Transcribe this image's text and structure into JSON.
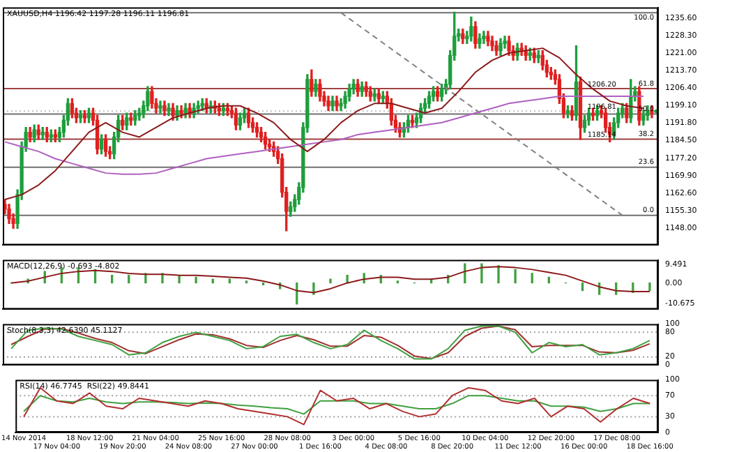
{
  "chart_data": [
    {
      "type": "candlestick",
      "title": "XAUUSD,H4 1196.42 1197.28 1196.11 1196.81",
      "tick_labels": "y",
      "colors": [
        "#e02020",
        "#e02020",
        "#e02020",
        "#1e9e3c",
        "#1e9e3c",
        "#1e9e3c",
        "#e02020",
        "#1e9e3c",
        "#e02020",
        "#1e9e3c",
        "#e02020",
        "#1e9e3c",
        "#e02020",
        "#1e9e3c",
        "#1e9e3c",
        "#1e9e3c",
        "#e02020",
        "#e02020",
        "#1e9e3c",
        "#e02020",
        "#1e9e3c",
        "#e02020",
        "#e02020",
        "#1e9e3c",
        "#e02020",
        "#e02020",
        "#1e9e3c",
        "#1e9e3c",
        "#e02020",
        "#1e9e3c",
        "#e02020",
        "#1e9e3c",
        "#1e9e3c",
        "#1e9e3c",
        "#1e9e3c",
        "#e02020",
        "#e02020",
        "#1e9e3c",
        "#e02020",
        "#1e9e3c",
        "#e02020",
        "#1e9e3c",
        "#e02020",
        "#1e9e3c",
        "#e02020",
        "#1e9e3c",
        "#1e9e3c",
        "#1e9e3c",
        "#e02020",
        "#1e9e3c",
        "#e02020",
        "#e02020",
        "#1e9e3c",
        "#e02020",
        "#e02020",
        "#e02020",
        "#1e9e3c",
        "#1e9e3c",
        "#e02020",
        "#e02020",
        "#e02020",
        "#e02020",
        "#e02020",
        "#e02020",
        "#e02020",
        "#e02020",
        "#e02020",
        "#e02020",
        "#1e9e3c",
        "#1e9e3c",
        "#1e9e3c",
        "#1e9e3c",
        "#1e9e3c",
        "#e02020",
        "#1e9e3c",
        "#e02020",
        "#e02020",
        "#e02020",
        "#1e9e3c",
        "#e02020",
        "#1e9e3c",
        "#1e9e3c",
        "#1e9e3c",
        "#1e9e3c",
        "#e02020",
        "#1e9e3c",
        "#e02020",
        "#e02020",
        "#1e9e3c",
        "#e02020",
        "#1e9e3c",
        "#e02020",
        "#e02020",
        "#e02020",
        "#e02020",
        "#1e9e3c",
        "#1e9e3c",
        "#e02020",
        "#1e9e3c",
        "#1e9e3c",
        "#1e9e3c",
        "#1e9e3c",
        "#1e9e3c",
        "#e02020",
        "#1e9e3c",
        "#1e9e3c",
        "#1e9e3c",
        "#1e9e3c",
        "#1e9e3c",
        "#e02020",
        "#1e9e3c",
        "#1e9e3c",
        "#e02020",
        "#1e9e3c",
        "#1e9e3c",
        "#e02020",
        "#e02020",
        "#e02020",
        "#1e9e3c",
        "#1e9e3c",
        "#e02020",
        "#e02020",
        "#1e9e3c",
        "#e02020",
        "#e02020",
        "#1e9e3c",
        "#e02020",
        "#1e9e3c",
        "#e02020",
        "#e02020",
        "#e02020",
        "#e02020",
        "#e02020",
        "#e02020",
        "#1e9e3c",
        "#e02020",
        "#1e9e3c",
        "#e02020",
        "#1e9e3c",
        "#1e9e3c",
        "#e02020",
        "#1e9e3c",
        "#e02020",
        "#e02020",
        "#e02020",
        "#1e9e3c",
        "#1e9e3c",
        "#1e9e3c",
        "#e02020",
        "#1e9e3c",
        "#1e9e3c",
        "#e02020",
        "#1e9e3c",
        "#1e9e3c",
        "#e02020",
        "#1e9e3c"
      ],
      "categories": [
        null,
        null,
        null,
        null,
        null,
        null,
        null,
        null,
        null,
        null,
        null,
        null,
        null,
        null,
        null,
        null,
        null,
        null,
        null,
        null,
        null,
        null,
        null,
        null,
        null,
        null,
        null,
        null,
        null,
        null,
        null,
        null,
        null,
        null,
        null,
        null,
        null,
        null,
        null,
        null,
        null,
        null,
        null,
        null,
        null,
        null,
        null,
        null,
        null,
        null,
        null,
        null,
        null,
        null,
        null,
        null,
        null,
        null,
        null,
        null,
        null,
        null,
        null,
        null,
        null,
        null,
        null,
        null,
        null,
        null,
        null,
        null,
        null,
        null,
        null,
        null,
        null,
        null,
        null,
        null,
        null,
        null,
        null,
        null,
        null,
        null,
        null,
        null,
        null,
        null,
        null,
        null,
        null,
        null,
        null,
        null,
        null,
        null,
        null,
        null,
        null,
        null,
        null,
        null,
        null,
        null,
        null,
        null,
        null,
        null,
        null,
        null,
        null,
        null,
        null,
        null,
        null,
        null,
        null,
        null,
        null,
        null,
        null,
        null,
        null,
        null,
        null,
        null,
        null,
        null,
        null,
        null,
        null,
        null,
        null,
        null,
        null,
        null,
        null,
        null,
        null,
        null,
        null,
        null,
        null,
        null,
        null,
        null,
        null,
        null,
        null,
        null,
        null,
        null,
        null,
        null
      ],
      "ohlc": [
        [
          1158,
          1160,
          1154,
          1156
        ],
        [
          1156,
          1158,
          1150,
          1152
        ],
        [
          1152,
          1154,
          1148,
          1150
        ],
        [
          1150,
          1164,
          1148,
          1162
        ],
        [
          1162,
          1184,
          1160,
          1182
        ],
        [
          1182,
          1190,
          1180,
          1188
        ],
        [
          1188,
          1190,
          1184,
          1186
        ],
        [
          1186,
          1191,
          1184,
          1189
        ],
        [
          1189,
          1191,
          1185,
          1187
        ],
        [
          1187,
          1190,
          1185,
          1188
        ],
        [
          1188,
          1190,
          1184,
          1186
        ],
        [
          1186,
          1189,
          1184,
          1187
        ],
        [
          1187,
          1189,
          1184,
          1186
        ],
        [
          1186,
          1190,
          1184,
          1188
        ],
        [
          1188,
          1195,
          1186,
          1193
        ],
        [
          1193,
          1202,
          1191,
          1200
        ],
        [
          1200,
          1202,
          1194,
          1196
        ],
        [
          1196,
          1198,
          1192,
          1194
        ],
        [
          1194,
          1197,
          1192,
          1195
        ],
        [
          1195,
          1197,
          1192,
          1194
        ],
        [
          1194,
          1198,
          1192,
          1196
        ],
        [
          1196,
          1198,
          1191,
          1193
        ],
        [
          1193,
          1195,
          1179,
          1181
        ],
        [
          1181,
          1187,
          1179,
          1185
        ],
        [
          1185,
          1187,
          1178,
          1180
        ],
        [
          1180,
          1182,
          1177,
          1179
        ],
        [
          1179,
          1188,
          1177,
          1186
        ],
        [
          1186,
          1195,
          1184,
          1193
        ],
        [
          1193,
          1195,
          1189,
          1191
        ],
        [
          1191,
          1196,
          1189,
          1194
        ],
        [
          1194,
          1196,
          1191,
          1193
        ],
        [
          1193,
          1197,
          1191,
          1195
        ],
        [
          1195,
          1198,
          1193,
          1196
        ],
        [
          1196,
          1201,
          1194,
          1199
        ],
        [
          1199,
          1207,
          1197,
          1205
        ],
        [
          1205,
          1207,
          1198,
          1200
        ],
        [
          1200,
          1202,
          1196,
          1198
        ],
        [
          1198,
          1201,
          1196,
          1199
        ],
        [
          1199,
          1201,
          1195,
          1197
        ],
        [
          1197,
          1200,
          1195,
          1198
        ],
        [
          1198,
          1200,
          1193,
          1195
        ],
        [
          1195,
          1199,
          1193,
          1197
        ],
        [
          1197,
          1199,
          1194,
          1196
        ],
        [
          1196,
          1200,
          1194,
          1198
        ],
        [
          1198,
          1200,
          1194,
          1196
        ],
        [
          1196,
          1200,
          1194,
          1198
        ],
        [
          1198,
          1201,
          1196,
          1199
        ],
        [
          1199,
          1202,
          1197,
          1200
        ],
        [
          1200,
          1202,
          1196,
          1198
        ],
        [
          1198,
          1201,
          1196,
          1199
        ],
        [
          1199,
          1201,
          1196,
          1198
        ],
        [
          1198,
          1200,
          1195,
          1197
        ],
        [
          1197,
          1200,
          1195,
          1198
        ],
        [
          1198,
          1200,
          1195,
          1197
        ],
        [
          1197,
          1199,
          1194,
          1196
        ],
        [
          1196,
          1198,
          1189,
          1191
        ],
        [
          1191,
          1196,
          1189,
          1194
        ],
        [
          1194,
          1198,
          1192,
          1196
        ],
        [
          1196,
          1198,
          1190,
          1192
        ],
        [
          1192,
          1194,
          1188,
          1190
        ],
        [
          1190,
          1192,
          1186,
          1188
        ],
        [
          1188,
          1190,
          1184,
          1186
        ],
        [
          1186,
          1188,
          1181,
          1183
        ],
        [
          1183,
          1185,
          1180,
          1182
        ],
        [
          1182,
          1184,
          1178,
          1180
        ],
        [
          1180,
          1182,
          1175,
          1177
        ],
        [
          1177,
          1179,
          1161,
          1163
        ],
        [
          1163,
          1165,
          1147,
          1155
        ],
        [
          1155,
          1159,
          1153,
          1157
        ],
        [
          1157,
          1162,
          1155,
          1160
        ],
        [
          1160,
          1167,
          1158,
          1165
        ],
        [
          1165,
          1192,
          1163,
          1190
        ],
        [
          1190,
          1212,
          1188,
          1210
        ],
        [
          1210,
          1214,
          1203,
          1205
        ],
        [
          1205,
          1210,
          1203,
          1208
        ],
        [
          1208,
          1210,
          1201,
          1203
        ],
        [
          1203,
          1205,
          1199,
          1201
        ],
        [
          1201,
          1203,
          1197,
          1199
        ],
        [
          1199,
          1203,
          1197,
          1201
        ],
        [
          1201,
          1203,
          1197,
          1199
        ],
        [
          1199,
          1202,
          1197,
          1200
        ],
        [
          1200,
          1205,
          1198,
          1203
        ],
        [
          1203,
          1208,
          1201,
          1206
        ],
        [
          1206,
          1210,
          1204,
          1208
        ],
        [
          1208,
          1210,
          1203,
          1205
        ],
        [
          1205,
          1209,
          1203,
          1207
        ],
        [
          1207,
          1209,
          1203,
          1205
        ],
        [
          1205,
          1207,
          1201,
          1203
        ],
        [
          1203,
          1206,
          1201,
          1204
        ],
        [
          1204,
          1206,
          1200,
          1202
        ],
        [
          1202,
          1205,
          1200,
          1203
        ],
        [
          1203,
          1205,
          1198,
          1200
        ],
        [
          1200,
          1202,
          1191,
          1193
        ],
        [
          1193,
          1195,
          1188,
          1190
        ],
        [
          1190,
          1192,
          1186,
          1188
        ],
        [
          1188,
          1192,
          1186,
          1190
        ],
        [
          1190,
          1195,
          1188,
          1193
        ],
        [
          1193,
          1195,
          1190,
          1192
        ],
        [
          1192,
          1196,
          1190,
          1194
        ],
        [
          1194,
          1200,
          1192,
          1198
        ],
        [
          1198,
          1202,
          1196,
          1200
        ],
        [
          1200,
          1205,
          1198,
          1203
        ],
        [
          1203,
          1207,
          1201,
          1205
        ],
        [
          1205,
          1207,
          1201,
          1203
        ],
        [
          1203,
          1208,
          1201,
          1206
        ],
        [
          1206,
          1210,
          1204,
          1208
        ],
        [
          1208,
          1222,
          1206,
          1220
        ],
        [
          1220,
          1238,
          1218,
          1228
        ],
        [
          1228,
          1231,
          1226,
          1229
        ],
        [
          1229,
          1231,
          1225,
          1227
        ],
        [
          1227,
          1230,
          1225,
          1228
        ],
        [
          1228,
          1236,
          1226,
          1232
        ],
        [
          1232,
          1234,
          1223,
          1225
        ],
        [
          1225,
          1229,
          1223,
          1227
        ],
        [
          1227,
          1230,
          1225,
          1228
        ],
        [
          1228,
          1230,
          1224,
          1226
        ],
        [
          1226,
          1228,
          1222,
          1224
        ],
        [
          1224,
          1226,
          1220,
          1222
        ],
        [
          1222,
          1227,
          1220,
          1225
        ],
        [
          1225,
          1228,
          1223,
          1226
        ],
        [
          1226,
          1228,
          1220,
          1222
        ],
        [
          1222,
          1224,
          1218,
          1220
        ],
        [
          1220,
          1225,
          1218,
          1223
        ],
        [
          1223,
          1225,
          1220,
          1222
        ],
        [
          1222,
          1224,
          1218,
          1220
        ],
        [
          1220,
          1223,
          1218,
          1221
        ],
        [
          1221,
          1223,
          1217,
          1219
        ],
        [
          1219,
          1222,
          1217,
          1220
        ],
        [
          1220,
          1222,
          1214,
          1216
        ],
        [
          1216,
          1218,
          1211,
          1213
        ],
        [
          1213,
          1215,
          1210,
          1212
        ],
        [
          1212,
          1214,
          1208,
          1210
        ],
        [
          1210,
          1212,
          1200,
          1202
        ],
        [
          1202,
          1204,
          1194,
          1196
        ],
        [
          1196,
          1199,
          1194,
          1197
        ],
        [
          1197,
          1199,
          1193,
          1195
        ],
        [
          1195,
          1224,
          1193,
          1209
        ],
        [
          1209,
          1211,
          1185,
          1190
        ],
        [
          1190,
          1195,
          1188,
          1193
        ],
        [
          1193,
          1198,
          1191,
          1196
        ],
        [
          1196,
          1198,
          1193,
          1195
        ],
        [
          1195,
          1199,
          1193,
          1197
        ],
        [
          1197,
          1199,
          1194,
          1196
        ],
        [
          1196,
          1198,
          1188,
          1190
        ],
        [
          1190,
          1192,
          1184,
          1187
        ],
        [
          1187,
          1194,
          1185,
          1192
        ],
        [
          1192,
          1198,
          1190,
          1196
        ],
        [
          1196,
          1200,
          1194,
          1198
        ],
        [
          1198,
          1200,
          1192,
          1194
        ],
        [
          1194,
          1210,
          1192,
          1203
        ],
        [
          1203,
          1207,
          1201,
          1205
        ],
        [
          1205,
          1207,
          1191,
          1193
        ],
        [
          1193,
          1197,
          1191,
          1195
        ],
        [
          1195,
          1199,
          1193,
          1197
        ],
        [
          1197,
          1199,
          1194,
          1196
        ],
        [
          1196.42,
          1197.28,
          1196.11,
          1196.81
        ]
      ],
      "series": [
        {
          "type": "line",
          "color": "#8b1a1a",
          "values": [
            1160,
            null,
            null,
            null,
            1162,
            null,
            null,
            null,
            1166,
            null,
            null,
            null,
            1172,
            null,
            null,
            null,
            1180,
            null,
            null,
            null,
            1188,
            null,
            null,
            null,
            1192,
            null,
            null,
            null,
            1188,
            null,
            null,
            null,
            1186,
            null,
            null,
            null,
            1190,
            null,
            null,
            null,
            1194,
            null,
            null,
            null,
            1196,
            null,
            null,
            null,
            1198,
            null,
            null,
            null,
            1199,
            null,
            null,
            null,
            1199,
            null,
            null,
            null,
            1196,
            null,
            null,
            null,
            1192,
            null,
            null,
            null,
            1185,
            null,
            null,
            null,
            1180,
            null,
            null,
            null,
            1185,
            null,
            null,
            null,
            1192,
            null,
            null,
            null,
            1197,
            null,
            null,
            null,
            1200,
            null,
            null,
            null,
            1200,
            null,
            null,
            null,
            1198,
            null,
            null,
            null,
            1196,
            null,
            null,
            null,
            1198,
            null,
            null,
            null,
            1205,
            null,
            null,
            null,
            1213,
            null,
            null,
            null,
            1218,
            null,
            null,
            null,
            1221,
            null,
            null,
            null,
            1222,
            null,
            null,
            null,
            1223,
            null,
            null,
            null,
            1219,
            null,
            null,
            null,
            1212,
            null,
            null,
            null,
            1206,
            null,
            null,
            null,
            1201,
            null,
            null,
            null,
            1199,
            null,
            null,
            null,
            1198,
            null,
            null,
            null
          ]
        },
        {
          "type": "line",
          "color": "#b060c0",
          "values": [
            1184,
            null,
            null,
            null,
            1182,
            null,
            null,
            null,
            1180,
            null,
            null,
            null,
            1177,
            null,
            null,
            null,
            1175,
            null,
            null,
            null,
            1173,
            null,
            null,
            null,
            1171,
            null,
            null,
            null,
            1170.5,
            null,
            null,
            null,
            1170.5,
            null,
            null,
            null,
            1171,
            null,
            null,
            null,
            1173,
            null,
            null,
            null,
            1175,
            null,
            null,
            null,
            1177,
            null,
            null,
            null,
            1178,
            null,
            null,
            null,
            1179,
            null,
            null,
            null,
            1180,
            null,
            null,
            null,
            1181,
            null,
            null,
            null,
            1182,
            null,
            null,
            null,
            1183,
            null,
            null,
            null,
            1184,
            null,
            null,
            null,
            1185,
            null,
            null,
            null,
            1187,
            null,
            null,
            null,
            1188,
            null,
            null,
            null,
            1189,
            null,
            null,
            null,
            1190,
            null,
            null,
            null,
            1191,
            null,
            null,
            null,
            1192,
            null,
            null,
            null,
            1194,
            null,
            null,
            null,
            1196,
            null,
            null,
            null,
            1198,
            null,
            null,
            null,
            1200,
            null,
            null,
            null,
            1201,
            null,
            null,
            null,
            1202,
            null,
            null,
            null,
            1203,
            null,
            null,
            null,
            1203,
            null,
            null,
            null,
            1203,
            null,
            null,
            null,
            1203,
            null,
            null,
            null,
            1203,
            null,
            null,
            null,
            1203,
            null,
            null,
            null
          ]
        },
        {
          "type": "line",
          "color": "#808080",
          "line_style": "dashed",
          "values": [
            null,
            null,
            null,
            null,
            null,
            null,
            null,
            null,
            null,
            null,
            null,
            null,
            null,
            null,
            null,
            null,
            null,
            null,
            null,
            null,
            null,
            null,
            null,
            null,
            null,
            null,
            null,
            null,
            null,
            null,
            null,
            null,
            null,
            null,
            null,
            null,
            null,
            null,
            null,
            null,
            null,
            null,
            null,
            null,
            null,
            null,
            null,
            null,
            null,
            null,
            null,
            null,
            null,
            null,
            null,
            null,
            null,
            null,
            null,
            null,
            null,
            null,
            null,
            null,
            null,
            null,
            null,
            null,
            null,
            null,
            null,
            null,
            null,
            null,
            null,
            null,
            null,
            null,
            null,
            null,
            1237.8,
            null,
            null,
            null,
            null,
            null,
            null,
            null,
            null,
            null,
            null,
            null,
            null,
            null,
            null,
            null,
            null,
            null,
            null,
            null,
            null,
            null,
            null,
            null,
            null,
            null,
            null,
            null,
            null,
            null,
            null,
            null,
            null,
            null,
            null,
            null,
            null,
            null,
            null,
            null,
            null,
            null,
            null,
            null,
            null,
            null,
            null,
            null,
            null,
            null,
            null,
            null,
            null,
            null,
            null,
            null,
            null,
            null,
            null,
            null,
            null,
            null,
            null,
            null,
            null,
            null,
            null,
            1153.4,
            null,
            null,
            null,
            null,
            null,
            null,
            null,
            null
          ]
        }
      ],
      "ylim": [
        1141,
        1240
      ],
      "yticks": [
        {
          "value": 1148,
          "label": "1148.00"
        },
        {
          "value": 1155.3,
          "label": "1155.30"
        },
        {
          "value": 1162.6,
          "label": "1162.60"
        },
        {
          "value": 1169.9,
          "label": "1169.90"
        },
        {
          "value": 1177.2,
          "label": "1177.20"
        },
        {
          "value": 1184.5,
          "label": "1184.50"
        },
        {
          "value": 1191.8,
          "label": "1191.80"
        },
        {
          "value": 1199.1,
          "label": "1199.10"
        },
        {
          "value": 1206.4,
          "label": "1206.40"
        },
        {
          "value": 1213.7,
          "label": "1213.70"
        },
        {
          "value": 1221,
          "label": "1221.00"
        },
        {
          "value": 1228.3,
          "label": "1228.30"
        },
        {
          "value": 1235.6,
          "label": "1235.60"
        }
      ],
      "ref_lines": [
        {
          "axis": "y",
          "value": 1237.8,
          "color": "#707070"
        },
        {
          "axis": "y",
          "value": 1206.2,
          "label": "1206.20",
          "color": "#a04040"
        },
        {
          "axis": "y",
          "value": 1196.81,
          "label": "1196.81",
          "color": "#c0c0c0",
          "line_style": "dotted"
        },
        {
          "axis": "y",
          "value": 1195.6,
          "color": "#707070"
        },
        {
          "axis": "y",
          "value": 1185.14,
          "label": "1185.14",
          "color": "#a04040"
        },
        {
          "axis": "y",
          "value": 1173.4,
          "color": "#707070"
        },
        {
          "axis": "y",
          "value": 1153.4,
          "color": "#707070"
        }
      ],
      "annotations": [
        {
          "text": "100.0",
          "y": 1237.8
        },
        {
          "text": "61.8",
          "y": 1206.2
        },
        {
          "text": "50.0",
          "y": 1195.6
        },
        {
          "text": "38.2",
          "y": 1185.14
        },
        {
          "text": "23.6",
          "y": 1173.4
        },
        {
          "text": "0.0",
          "y": 1153.4
        }
      ]
    },
    {
      "type": "line",
      "title": "MACD(12,26,9) -0.693 -4.802",
      "tick_labels": "y",
      "categories": [
        null,
        null,
        null,
        null,
        null,
        null,
        null,
        null,
        null,
        null,
        null,
        null,
        null,
        null,
        null,
        null,
        null,
        null,
        null,
        null,
        null,
        null,
        null,
        null,
        null,
        null,
        null,
        null,
        null,
        null,
        null,
        null,
        null,
        null,
        null,
        null,
        null,
        null,
        null
      ],
      "series": [
        {
          "type": "bar",
          "color": "#40a040",
          "values": [
            0,
            2,
            6,
            8,
            8,
            7,
            4,
            4,
            5,
            5,
            4,
            3,
            2,
            2,
            1,
            -1,
            -3,
            -11,
            -6,
            2,
            4,
            5,
            4,
            1,
            0,
            2,
            4,
            10,
            10,
            9,
            7,
            5,
            3,
            0,
            -4,
            -6,
            -6,
            -5,
            -4
          ]
        },
        {
          "type": "line",
          "color": "#8b1a1a",
          "values": [
            0,
            1,
            3,
            5,
            6,
            6.5,
            6,
            5,
            4.5,
            4.5,
            4,
            4,
            3.5,
            3,
            2.5,
            1,
            -1,
            -4,
            -5,
            -3,
            0,
            2,
            3,
            3,
            2,
            2,
            3,
            6,
            8,
            8.5,
            8,
            7,
            5.5,
            4,
            1,
            -2,
            -4,
            -4.5,
            -4.5
          ]
        }
      ],
      "ylim": [
        -13.7,
        12
      ],
      "yticks": [
        {
          "value": -10.675,
          "label": "-10.675"
        },
        {
          "value": 0,
          "label": "0.00"
        },
        {
          "value": 9.491,
          "label": "9.491"
        }
      ]
    },
    {
      "type": "line",
      "title": "Stoch(8,3,3) 42.6390 45.1127",
      "tick_labels": "y",
      "categories": [
        null,
        null,
        null,
        null,
        null,
        null,
        null,
        null,
        null,
        null,
        null,
        null,
        null,
        null,
        null,
        null,
        null,
        null,
        null,
        null,
        null,
        null,
        null,
        null,
        null,
        null,
        null,
        null,
        null,
        null,
        null,
        null,
        null,
        null,
        null,
        null,
        null,
        null,
        null
      ],
      "series": [
        {
          "type": "line",
          "color": "#40a040",
          "values": [
            40,
            85,
            90,
            88,
            70,
            60,
            50,
            25,
            30,
            55,
            70,
            80,
            70,
            60,
            40,
            45,
            70,
            75,
            55,
            40,
            50,
            85,
            60,
            40,
            15,
            15,
            40,
            85,
            95,
            95,
            80,
            30,
            55,
            45,
            50,
            25,
            30,
            40,
            60
          ]
        },
        {
          "type": "line",
          "color": "#a03030",
          "values": [
            50,
            70,
            88,
            89,
            78,
            65,
            55,
            35,
            28,
            45,
            62,
            76,
            74,
            64,
            48,
            43,
            60,
            72,
            62,
            46,
            46,
            72,
            68,
            48,
            22,
            16,
            30,
            70,
            90,
            95,
            86,
            45,
            48,
            48,
            48,
            32,
            30,
            36,
            52
          ]
        }
      ],
      "ylim": [
        0,
        100
      ],
      "yticks": [
        0,
        20,
        80,
        100
      ],
      "ref_lines": [
        {
          "axis": "y",
          "value": 20,
          "color": "#a0a0a0",
          "line_style": "dotted"
        },
        {
          "axis": "y",
          "value": 80,
          "color": "#a0a0a0",
          "line_style": "dotted"
        }
      ]
    },
    {
      "type": "line",
      "title": "RSI(14) 46.7745  RSI(22) 49.8441",
      "categories": [
        "14 Nov 2014",
        null,
        "17 Nov 04:00",
        null,
        "18 Nov 12:00",
        null,
        "19 Nov 20:00",
        null,
        "21 Nov 04:00",
        null,
        "24 Nov 08:00",
        null,
        "25 Nov 16:00",
        null,
        "27 Nov 00:00",
        null,
        "28 Nov 08:00",
        null,
        "1 Dec 16:00",
        null,
        "3 Dec 00:00",
        null,
        "4 Dec 08:00",
        null,
        "5 Dec 16:00",
        null,
        "8 Dec 20:00",
        null,
        "10 Dec 04:00",
        null,
        "11 Dec 12:00",
        null,
        "12 Dec 20:00",
        null,
        "16 Dec 00:00",
        null,
        "17 Dec 08:00",
        null,
        "18 Dec 16:00"
      ],
      "series": [
        {
          "type": "line",
          "color": "#b03030",
          "values": [
            30,
            85,
            60,
            55,
            75,
            50,
            45,
            65,
            60,
            55,
            50,
            60,
            55,
            45,
            40,
            35,
            30,
            15,
            80,
            60,
            65,
            45,
            55,
            40,
            30,
            35,
            70,
            85,
            80,
            60,
            55,
            65,
            30,
            50,
            45,
            20,
            45,
            65,
            55
          ]
        },
        {
          "type": "line",
          "color": "#40a040",
          "values": [
            40,
            70,
            60,
            58,
            65,
            58,
            55,
            58,
            58,
            57,
            55,
            56,
            55,
            52,
            50,
            47,
            45,
            35,
            60,
            60,
            60,
            55,
            55,
            50,
            45,
            45,
            55,
            70,
            70,
            65,
            60,
            60,
            50,
            50,
            48,
            40,
            45,
            55,
            55
          ]
        }
      ],
      "ylim": [
        0,
        100
      ],
      "yticks": [
        0,
        30,
        70,
        100
      ],
      "ref_lines": [
        {
          "axis": "y",
          "value": 30,
          "color": "#a0a0a0",
          "line_style": "dotted"
        },
        {
          "axis": "y",
          "value": 70,
          "color": "#a0a0a0",
          "line_style": "dotted"
        }
      ]
    }
  ]
}
